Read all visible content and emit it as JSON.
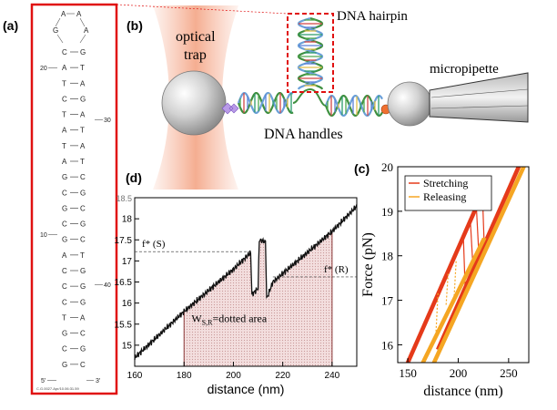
{
  "figure": {
    "panel_labels": {
      "a": "(a)",
      "b": "(b)",
      "c": "(c)",
      "d": "(d)"
    }
  },
  "hairpin": {
    "loop": [
      "A",
      "A",
      "G",
      "A"
    ],
    "pairs": [
      [
        "C",
        "G"
      ],
      [
        "A",
        "T"
      ],
      [
        "T",
        "A"
      ],
      [
        "C",
        "G"
      ],
      [
        "T",
        "A"
      ],
      [
        "A",
        "T"
      ],
      [
        "T",
        "A"
      ],
      [
        "A",
        "T"
      ],
      [
        "G",
        "C"
      ],
      [
        "C",
        "G"
      ],
      [
        "G",
        "C"
      ],
      [
        "C",
        "G"
      ],
      [
        "G",
        "C"
      ],
      [
        "A",
        "T"
      ],
      [
        "C",
        "G"
      ],
      [
        "C",
        "G"
      ],
      [
        "C",
        "G"
      ],
      [
        "T",
        "A"
      ],
      [
        "G",
        "C"
      ],
      [
        "C",
        "G"
      ],
      [
        "G",
        "C"
      ]
    ],
    "index_labels": {
      "twenty": "20",
      "thirty": "30",
      "ten": "10",
      "forty": "40"
    },
    "five_prime": "5'",
    "three_prime": "3'",
    "footer": "C.G.0027.Apr/10.06:31.59"
  },
  "schematic": {
    "optical_trap": [
      "optical",
      "trap"
    ],
    "dna_hairpin": "DNA hairpin",
    "micropipette": "micropipette",
    "dna_handles": "DNA handles",
    "colors": {
      "trap": "#f4a98b",
      "bead": "#c8c8c8",
      "linker_purple": "#b99be8",
      "linker_orange": "#f07030",
      "highlight": "#e01010"
    }
  },
  "chart_data": [
    {
      "id": "d",
      "type": "line",
      "xlabel": "distance (nm)",
      "ylabel": "",
      "xlim": [
        160,
        250
      ],
      "ylim": [
        14.5,
        18.5
      ],
      "xticks": [
        160,
        180,
        200,
        220,
        240
      ],
      "yticks": [
        15,
        15.5,
        16,
        16.5,
        17,
        17.5,
        18
      ],
      "ytick_labels": [
        "15",
        "15.5",
        "16",
        "16.5",
        "17",
        "17.5",
        "18"
      ],
      "top_partial_tick": "18.5",
      "series": [
        {
          "name": "trace",
          "x": [
            160,
            180,
            200,
            207,
            207.5,
            210,
            210.5,
            213,
            213.5,
            216,
            230,
            240,
            250
          ],
          "y": [
            14.7,
            15.8,
            16.8,
            17.2,
            16.2,
            16.35,
            17.5,
            17.45,
            16.1,
            16.5,
            17.2,
            17.7,
            18.3
          ]
        }
      ],
      "annotations": {
        "f_star_s": "f* (S)",
        "f_star_r": "f* (R)",
        "f_s_value": 17.22,
        "f_r_value": 16.62,
        "area_label": "W",
        "area_sub": "S,R",
        "area_suffix": "=dotted area",
        "area_x_range": [
          180,
          240
        ]
      },
      "colors": {
        "trace": "#111111",
        "area": "#e9c9c9"
      }
    },
    {
      "id": "c",
      "type": "line",
      "xlabel": "distance (nm)",
      "ylabel": "Force (pN)",
      "xlim": [
        140,
        270
      ],
      "ylim": [
        15.6,
        20
      ],
      "xticks": [
        150,
        200,
        250
      ],
      "yticks": [
        16,
        17,
        18,
        19,
        20
      ],
      "legend": "top-left",
      "series": [
        {
          "name": "Stretching",
          "color": "#e53a1a",
          "segments": [
            [
              [
                150,
                15.6
              ],
              [
                222,
                19.3
              ]
            ],
            [
              [
                180,
                15.9
              ],
              [
                260,
                20
              ]
            ]
          ],
          "rips": [
            [
              205,
              18.5,
              207,
              17.2
            ],
            [
              212,
              18.8,
              215,
              17.6
            ],
            [
              218,
              19.1,
              221,
              17.8
            ],
            [
              224,
              19.4,
              226,
              18.1
            ]
          ]
        },
        {
          "name": "Releasing",
          "color": "#f5a623",
          "segments": [
            [
              [
                165,
                15.6
              ],
              [
                226,
                18.4
              ]
            ],
            [
              [
                176,
                15.6
              ],
              [
                265,
                20
              ]
            ]
          ],
          "rips": [
            [
              178,
              16.3,
              180,
              17.2
            ],
            [
              188,
              16.9,
              190,
              17.6
            ],
            [
              196,
              17.1,
              198,
              17.9
            ]
          ]
        }
      ]
    }
  ]
}
